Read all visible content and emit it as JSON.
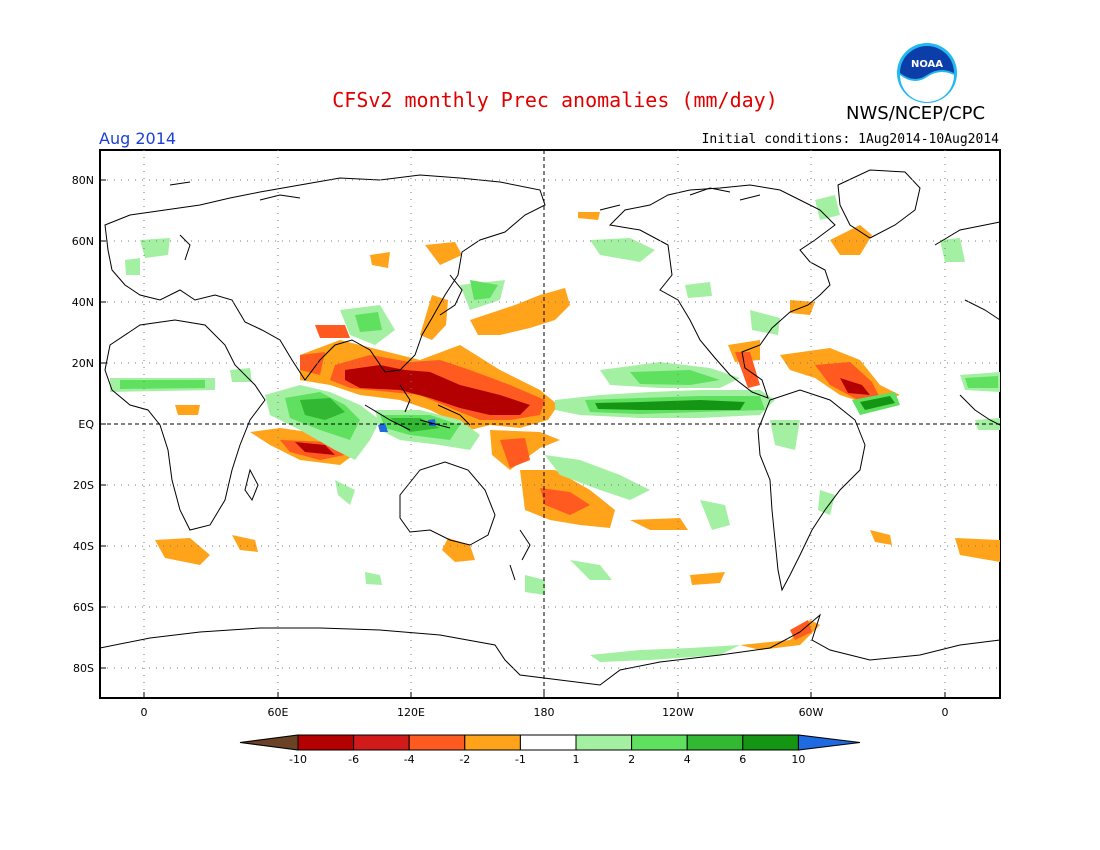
{
  "header": {
    "title": "CFSv2 monthly Prec anomalies (mm/day)",
    "agency": "NWS/NCEP/CPC",
    "month": "Aug 2014",
    "initial_conditions": "Initial conditions: 1Aug2014-10Aug2014",
    "logo_text": "NOAA"
  },
  "map": {
    "lat_labels": [
      "80N",
      "60N",
      "40N",
      "20N",
      "EQ",
      "20S",
      "40S",
      "60S",
      "80S"
    ],
    "lon_labels": [
      "0",
      "60E",
      "120E",
      "180",
      "120W",
      "60W",
      "0"
    ]
  },
  "colorbar": {
    "labels": [
      "-10",
      "-6",
      "-4",
      "-2",
      "-1",
      "1",
      "2",
      "4",
      "6",
      "10"
    ],
    "colors": [
      "#6b4226",
      "#b30000",
      "#d11a1a",
      "#ff5a1f",
      "#ffa31a",
      "#ffffff",
      "#a3f0a3",
      "#5fe05f",
      "#32b832",
      "#149614",
      "#1f6ae0"
    ]
  }
}
